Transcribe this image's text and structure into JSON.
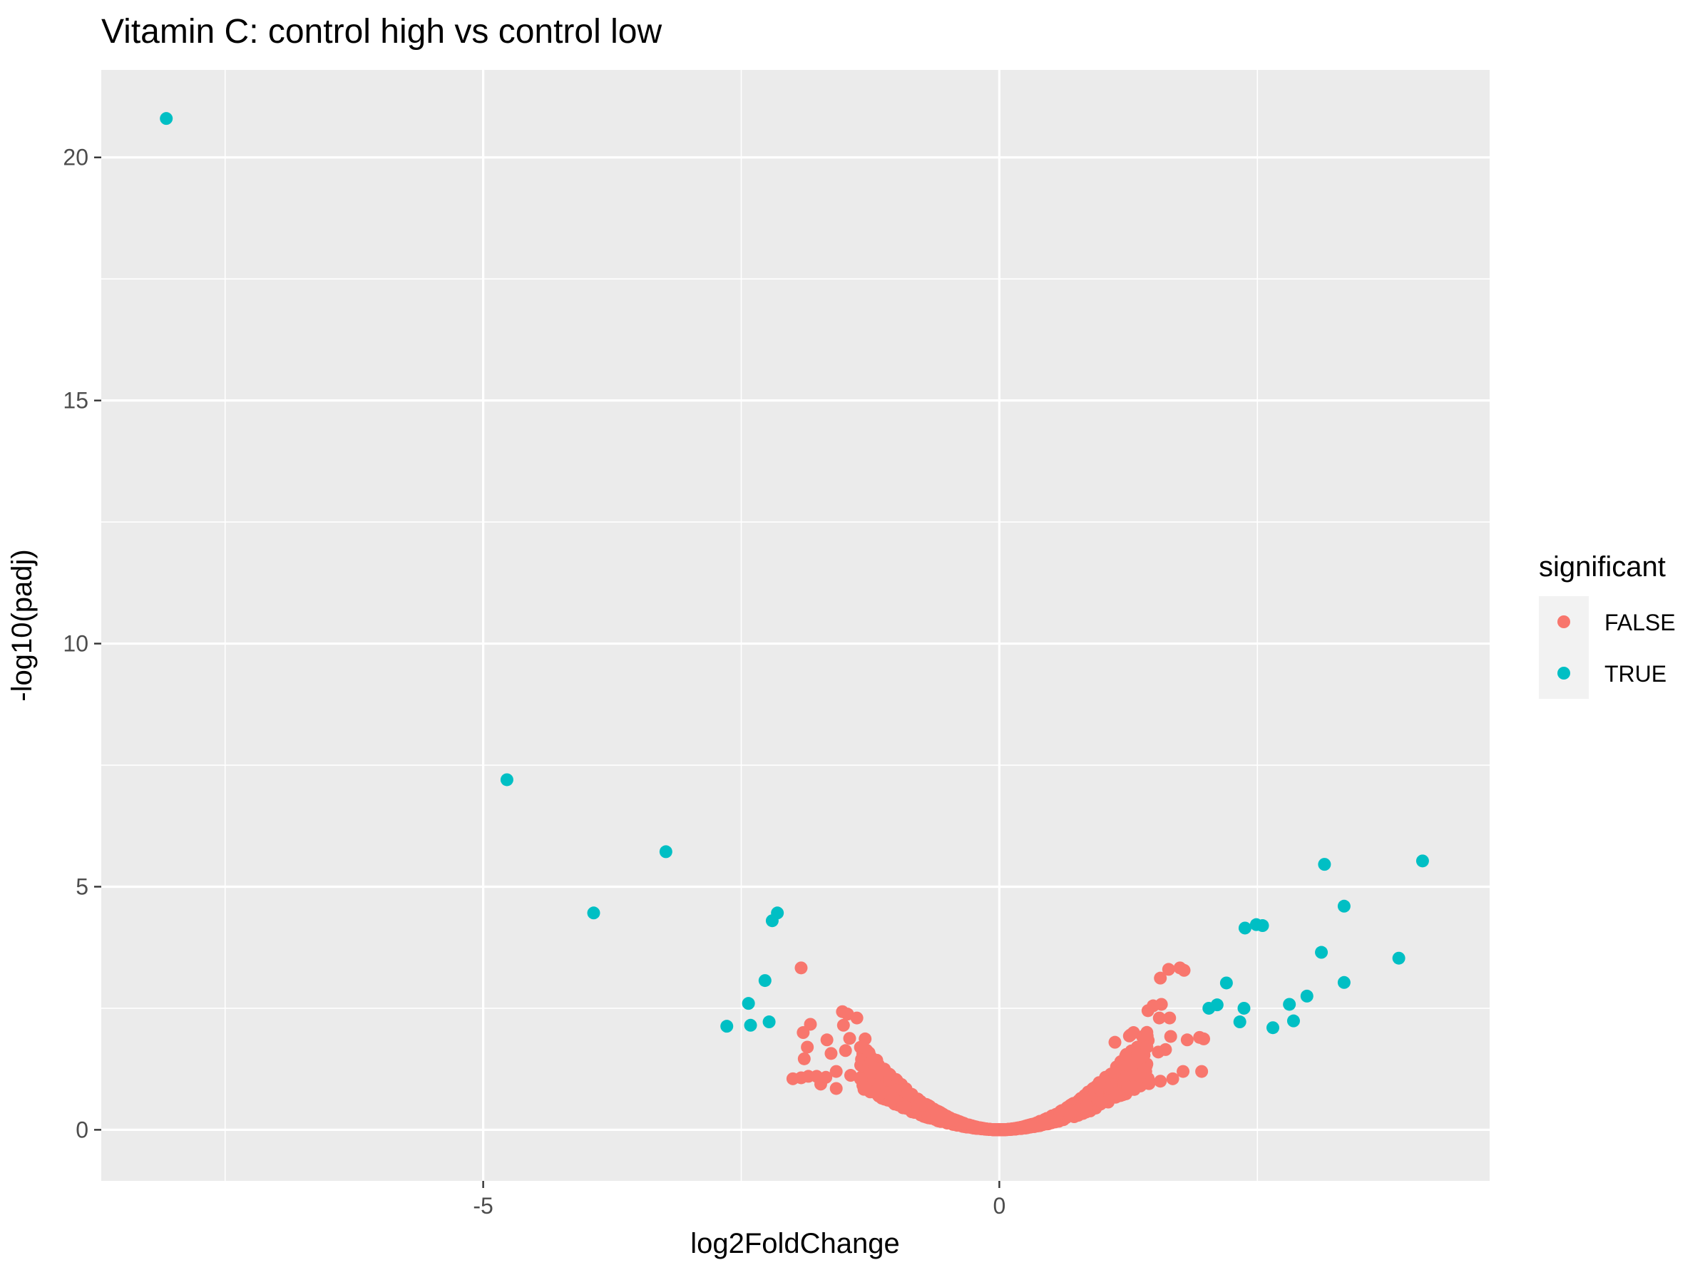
{
  "chart_data": {
    "type": "scatter",
    "title": "Vitamin C: control high vs control low",
    "xlabel": "log2FoldChange",
    "ylabel": "-log10(padj)",
    "xlim": [
      -8.7,
      4.75
    ],
    "ylim": [
      -1.05,
      21.8
    ],
    "x_major_ticks": [
      -5,
      0
    ],
    "x_minor_ticks": [
      -7.5,
      -2.5,
      2.5
    ],
    "y_major_ticks": [
      0,
      5,
      10,
      15,
      20
    ],
    "x_tick_labels": [
      "-5",
      "0"
    ],
    "y_tick_labels": [
      "0",
      "5",
      "10",
      "15",
      "20"
    ],
    "grid": true,
    "background": "#ebebeb",
    "legend": {
      "title": "significant",
      "position": "right",
      "entries": [
        {
          "label": "FALSE",
          "color": "#F8766D"
        },
        {
          "label": "TRUE",
          "color": "#00BFC4"
        }
      ]
    },
    "series": [
      {
        "name": "TRUE",
        "color": "#00BFC4",
        "points": [
          [
            -8.07,
            20.8
          ],
          [
            -4.77,
            7.2
          ],
          [
            -3.93,
            4.46
          ],
          [
            -3.23,
            5.72
          ],
          [
            -2.15,
            4.46
          ],
          [
            -2.2,
            4.3
          ],
          [
            -2.27,
            3.07
          ],
          [
            -2.43,
            2.6
          ],
          [
            -2.41,
            2.15
          ],
          [
            -2.23,
            2.22
          ],
          [
            -2.64,
            2.13
          ],
          [
            2.49,
            4.22
          ],
          [
            2.38,
            4.15
          ],
          [
            2.55,
            4.2
          ],
          [
            2.2,
            3.02
          ],
          [
            2.03,
            2.5
          ],
          [
            2.11,
            2.57
          ],
          [
            2.37,
            2.5
          ],
          [
            2.33,
            2.22
          ],
          [
            2.65,
            2.1
          ],
          [
            2.81,
            2.58
          ],
          [
            2.85,
            2.24
          ],
          [
            2.98,
            2.75
          ],
          [
            3.12,
            3.65
          ],
          [
            3.15,
            5.46
          ],
          [
            3.34,
            4.6
          ],
          [
            3.34,
            3.03
          ],
          [
            3.87,
            3.53
          ],
          [
            4.1,
            5.53
          ]
        ]
      },
      {
        "name": "FALSE",
        "color": "#F8766D",
        "points": [
          [
            -1.92,
            3.33
          ],
          [
            -1.52,
            2.43
          ],
          [
            -1.47,
            2.38
          ],
          [
            -1.38,
            2.3
          ],
          [
            -1.51,
            2.15
          ],
          [
            -1.83,
            2.17
          ],
          [
            -1.9,
            2.0
          ],
          [
            -1.86,
            1.7
          ],
          [
            -1.67,
            1.85
          ],
          [
            -1.45,
            1.88
          ],
          [
            -1.3,
            1.87
          ],
          [
            -1.49,
            1.63
          ],
          [
            -1.89,
            1.46
          ],
          [
            -1.63,
            1.57
          ],
          [
            -1.58,
            1.2
          ],
          [
            -1.21,
            1.28
          ],
          [
            -1.85,
            1.1
          ],
          [
            -1.77,
            1.1
          ],
          [
            -1.92,
            1.07
          ],
          [
            -1.73,
            0.94
          ],
          [
            -1.58,
            0.85
          ],
          [
            -2.0,
            1.05
          ],
          [
            -1.68,
            1.08
          ],
          [
            -1.44,
            1.12
          ],
          [
            1.56,
            3.12
          ],
          [
            1.64,
            3.3
          ],
          [
            1.94,
            1.9
          ],
          [
            1.82,
            1.85
          ],
          [
            1.75,
            3.33
          ],
          [
            1.79,
            3.28
          ],
          [
            1.57,
            2.58
          ],
          [
            1.49,
            2.55
          ],
          [
            1.44,
            2.45
          ],
          [
            1.55,
            2.3
          ],
          [
            1.65,
            2.3
          ],
          [
            1.66,
            1.92
          ],
          [
            1.26,
            1.93
          ],
          [
            1.3,
            2.0
          ],
          [
            1.23,
            1.55
          ],
          [
            1.34,
            1.55
          ],
          [
            1.54,
            1.6
          ],
          [
            1.61,
            1.65
          ],
          [
            1.12,
            1.8
          ],
          [
            1.96,
            1.2
          ],
          [
            1.78,
            1.2
          ],
          [
            1.98,
            1.87
          ],
          [
            1.43,
            1.7
          ],
          [
            1.27,
            1.95
          ],
          [
            1.56,
            1.0
          ],
          [
            1.68,
            1.05
          ],
          [
            1.45,
            0.95
          ],
          [
            1.3,
            0.88
          ]
        ],
        "dense_band": {
          "description": "dense cluster of non-significant genes approximating -log10(padj) ≈ 0.9·|log2FoldChange|^1.9 for |log2FoldChange| up to about 1.25",
          "x_range": [
            -1.4,
            1.5
          ]
        }
      }
    ]
  }
}
